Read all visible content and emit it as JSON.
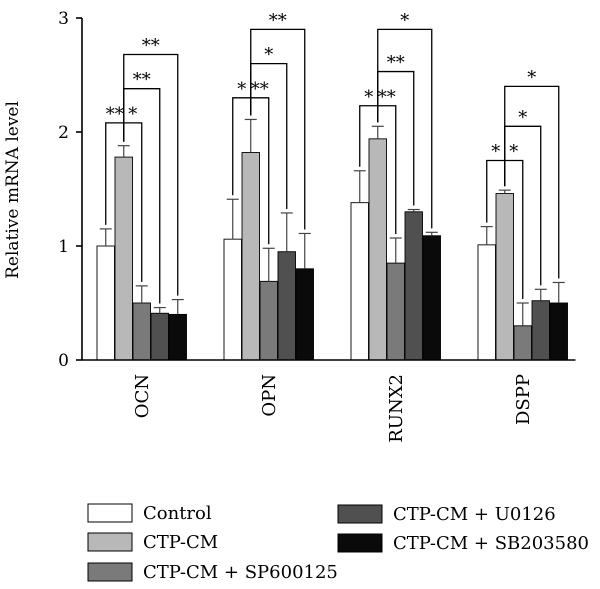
{
  "chart_data": {
    "type": "bar",
    "ylabel": "Relative mRNA level",
    "ylim": [
      0,
      3
    ],
    "yticks": [
      "0",
      "1",
      "2",
      "3"
    ],
    "categories": [
      "OCN",
      "OPN",
      "RUNX2",
      "DSPP"
    ],
    "series": [
      {
        "name": "Control",
        "color": "#ffffff",
        "values": [
          1.0,
          1.06,
          1.38,
          1.01
        ],
        "errors": [
          0.15,
          0.35,
          0.28,
          0.16
        ]
      },
      {
        "name": "CTP-CM",
        "color": "#b8b8b8",
        "values": [
          1.78,
          1.82,
          1.94,
          1.46
        ],
        "errors": [
          0.1,
          0.29,
          0.11,
          0.03
        ]
      },
      {
        "name": "CTP-CM + SP600125",
        "color": "#7a7a7a",
        "values": [
          0.5,
          0.69,
          0.85,
          0.3
        ],
        "errors": [
          0.15,
          0.29,
          0.22,
          0.2
        ]
      },
      {
        "name": "CTP-CM + U0126",
        "color": "#505050",
        "values": [
          0.41,
          0.95,
          1.3,
          0.52
        ],
        "errors": [
          0.05,
          0.34,
          0.02,
          0.1
        ]
      },
      {
        "name": "CTP-CM + SB203580",
        "color": "#0a0a0a",
        "values": [
          0.4,
          0.8,
          1.09,
          0.5
        ],
        "errors": [
          0.13,
          0.31,
          0.03,
          0.18
        ]
      }
    ],
    "significance": [
      {
        "category": 0,
        "from": 0,
        "to": 1,
        "y": 2.08,
        "label": "**"
      },
      {
        "category": 0,
        "from": 1,
        "to": 2,
        "y": 2.08,
        "label": "*"
      },
      {
        "category": 0,
        "from": 1,
        "to": 3,
        "y": 2.38,
        "label": "**"
      },
      {
        "category": 0,
        "from": 1,
        "to": 4,
        "y": 2.68,
        "label": "**"
      },
      {
        "category": 1,
        "from": 0,
        "to": 1,
        "y": 2.3,
        "label": "*"
      },
      {
        "category": 1,
        "from": 1,
        "to": 2,
        "y": 2.3,
        "label": "**"
      },
      {
        "category": 1,
        "from": 1,
        "to": 3,
        "y": 2.6,
        "label": "*"
      },
      {
        "category": 1,
        "from": 1,
        "to": 4,
        "y": 2.9,
        "label": "**"
      },
      {
        "category": 2,
        "from": 0,
        "to": 1,
        "y": 2.23,
        "label": "*"
      },
      {
        "category": 2,
        "from": 1,
        "to": 2,
        "y": 2.23,
        "label": "**"
      },
      {
        "category": 2,
        "from": 1,
        "to": 3,
        "y": 2.53,
        "label": "**"
      },
      {
        "category": 2,
        "from": 1,
        "to": 4,
        "y": 2.9,
        "label": "*"
      },
      {
        "category": 3,
        "from": 0,
        "to": 1,
        "y": 1.75,
        "label": "*"
      },
      {
        "category": 3,
        "from": 1,
        "to": 2,
        "y": 1.75,
        "label": "*"
      },
      {
        "category": 3,
        "from": 1,
        "to": 3,
        "y": 2.05,
        "label": "*"
      },
      {
        "category": 3,
        "from": 1,
        "to": 4,
        "y": 2.4,
        "label": "*"
      }
    ],
    "legend_position": "bottom"
  }
}
